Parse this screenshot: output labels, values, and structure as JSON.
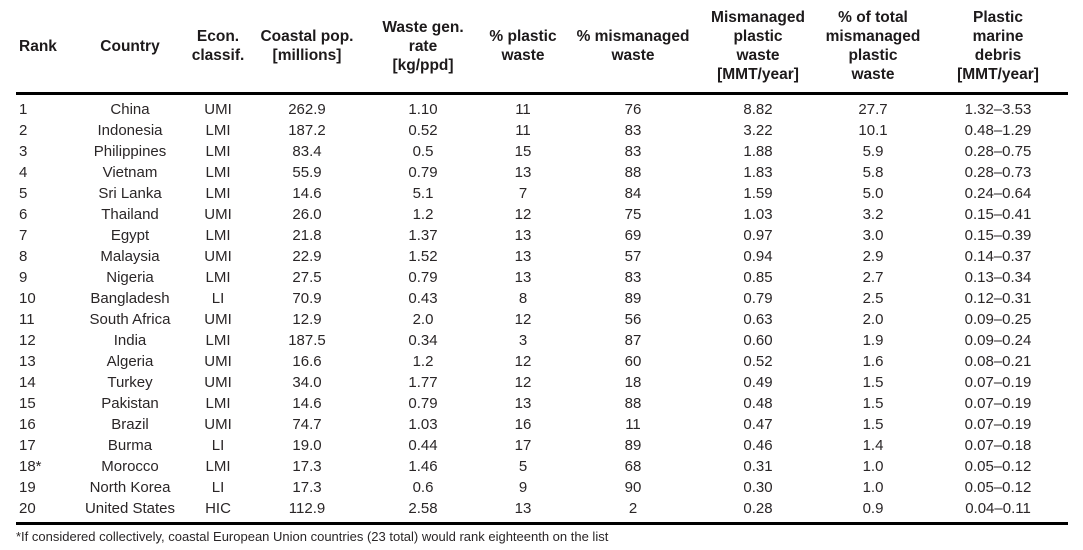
{
  "table": {
    "columns": [
      "Rank",
      "Country",
      "Econ.\nclassif.",
      "Coastal pop.\n[millions]",
      "Waste gen.\nrate\n[kg/ppd]",
      "% plastic\nwaste",
      "% mismanaged\nwaste",
      "Mismanaged\nplastic\nwaste\n[MMT/year]",
      "% of total\nmismanaged\nplastic\nwaste",
      "Plastic\nmarine\ndebris\n[MMT/year]"
    ],
    "column_ids": [
      "rank",
      "country",
      "econ-classif",
      "coastal-pop",
      "waste-gen-rate",
      "pct-plastic-waste",
      "pct-mismanaged-waste",
      "mismanaged-plastic-waste",
      "pct-total-mismanaged-plastic-waste",
      "plastic-marine-debris"
    ],
    "rows": [
      [
        "1",
        "China",
        "UMI",
        "262.9",
        "1.10",
        "11",
        "76",
        "8.82",
        "27.7",
        "1.32–3.53"
      ],
      [
        "2",
        "Indonesia",
        "LMI",
        "187.2",
        "0.52",
        "11",
        "83",
        "3.22",
        "10.1",
        "0.48–1.29"
      ],
      [
        "3",
        "Philippines",
        "LMI",
        "83.4",
        "0.5",
        "15",
        "83",
        "1.88",
        "5.9",
        "0.28–0.75"
      ],
      [
        "4",
        "Vietnam",
        "LMI",
        "55.9",
        "0.79",
        "13",
        "88",
        "1.83",
        "5.8",
        "0.28–0.73"
      ],
      [
        "5",
        "Sri Lanka",
        "LMI",
        "14.6",
        "5.1",
        "7",
        "84",
        "1.59",
        "5.0",
        "0.24–0.64"
      ],
      [
        "6",
        "Thailand",
        "UMI",
        "26.0",
        "1.2",
        "12",
        "75",
        "1.03",
        "3.2",
        "0.15–0.41"
      ],
      [
        "7",
        "Egypt",
        "LMI",
        "21.8",
        "1.37",
        "13",
        "69",
        "0.97",
        "3.0",
        "0.15–0.39"
      ],
      [
        "8",
        "Malaysia",
        "UMI",
        "22.9",
        "1.52",
        "13",
        "57",
        "0.94",
        "2.9",
        "0.14–0.37"
      ],
      [
        "9",
        "Nigeria",
        "LMI",
        "27.5",
        "0.79",
        "13",
        "83",
        "0.85",
        "2.7",
        "0.13–0.34"
      ],
      [
        "10",
        "Bangladesh",
        "LI",
        "70.9",
        "0.43",
        "8",
        "89",
        "0.79",
        "2.5",
        "0.12–0.31"
      ],
      [
        "11",
        "South Africa",
        "UMI",
        "12.9",
        "2.0",
        "12",
        "56",
        "0.63",
        "2.0",
        "0.09–0.25"
      ],
      [
        "12",
        "India",
        "LMI",
        "187.5",
        "0.34",
        "3",
        "87",
        "0.60",
        "1.9",
        "0.09–0.24"
      ],
      [
        "13",
        "Algeria",
        "UMI",
        "16.6",
        "1.2",
        "12",
        "60",
        "0.52",
        "1.6",
        "0.08–0.21"
      ],
      [
        "14",
        "Turkey",
        "UMI",
        "34.0",
        "1.77",
        "12",
        "18",
        "0.49",
        "1.5",
        "0.07–0.19"
      ],
      [
        "15",
        "Pakistan",
        "LMI",
        "14.6",
        "0.79",
        "13",
        "88",
        "0.48",
        "1.5",
        "0.07–0.19"
      ],
      [
        "16",
        "Brazil",
        "UMI",
        "74.7",
        "1.03",
        "16",
        "11",
        "0.47",
        "1.5",
        "0.07–0.19"
      ],
      [
        "17",
        "Burma",
        "LI",
        "19.0",
        "0.44",
        "17",
        "89",
        "0.46",
        "1.4",
        "0.07–0.18"
      ],
      [
        "18*",
        "Morocco",
        "LMI",
        "17.3",
        "1.46",
        "5",
        "68",
        "0.31",
        "1.0",
        "0.05–0.12"
      ],
      [
        "19",
        "North Korea",
        "LI",
        "17.3",
        "0.6",
        "9",
        "90",
        "0.30",
        "1.0",
        "0.05–0.12"
      ],
      [
        "20",
        "United States",
        "HIC",
        "112.9",
        "2.58",
        "13",
        "2",
        "0.28",
        "0.9",
        "0.04–0.11"
      ]
    ],
    "footnote": "*If considered collectively, coastal European Union countries (23 total) would rank eighteenth on the list"
  },
  "colors": {
    "text": "#231f20",
    "rule": "#000000",
    "background": "#ffffff"
  }
}
